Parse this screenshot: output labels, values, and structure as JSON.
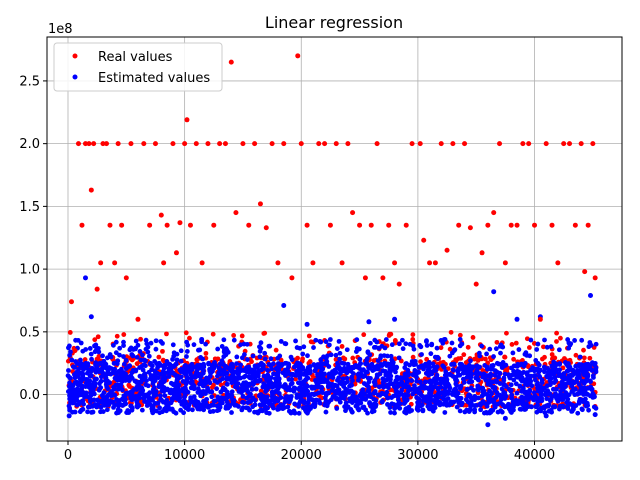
{
  "chart_data": {
    "type": "scatter",
    "title": "Linear regression",
    "xlabel": "",
    "ylabel": "",
    "y_offset_label": "1e8",
    "xlim": [
      -1800,
      47500
    ],
    "ylim": [
      -0.37,
      2.85
    ],
    "x_ticks": [
      0,
      10000,
      20000,
      30000,
      40000
    ],
    "x_tick_labels": [
      "0",
      "10000",
      "20000",
      "30000",
      "40000"
    ],
    "y_ticks": [
      0.0,
      0.5,
      1.0,
      1.5,
      2.0,
      2.5
    ],
    "y_tick_labels": [
      "0.0",
      "0.5",
      "1.0",
      "1.5",
      "2.0",
      "2.5"
    ],
    "grid": true,
    "legend_position": "top-left",
    "series": [
      {
        "name": "Real values",
        "color": "#ff0000",
        "marker": "dot",
        "points": [
          [
            300,
            0.74
          ],
          [
            600,
            0.35
          ],
          [
            900,
            2.0
          ],
          [
            1200,
            1.35
          ],
          [
            1500,
            2.0
          ],
          [
            1800,
            2.0
          ],
          [
            2000,
            1.63
          ],
          [
            2200,
            2.0
          ],
          [
            2500,
            0.84
          ],
          [
            2800,
            1.05
          ],
          [
            3000,
            2.0
          ],
          [
            3300,
            2.0
          ],
          [
            3600,
            1.35
          ],
          [
            4000,
            1.05
          ],
          [
            4300,
            2.0
          ],
          [
            4600,
            1.35
          ],
          [
            5000,
            0.93
          ],
          [
            5400,
            2.0
          ],
          [
            6000,
            0.6
          ],
          [
            6500,
            2.0
          ],
          [
            7000,
            1.35
          ],
          [
            7500,
            2.0
          ],
          [
            8000,
            1.43
          ],
          [
            8200,
            1.05
          ],
          [
            8500,
            1.35
          ],
          [
            9000,
            2.0
          ],
          [
            9300,
            1.13
          ],
          [
            9600,
            1.37
          ],
          [
            10000,
            2.0
          ],
          [
            10200,
            2.19
          ],
          [
            10500,
            1.35
          ],
          [
            11000,
            2.0
          ],
          [
            11500,
            1.05
          ],
          [
            12000,
            2.0
          ],
          [
            12500,
            1.35
          ],
          [
            13000,
            2.0
          ],
          [
            13500,
            2.0
          ],
          [
            14000,
            2.65
          ],
          [
            14400,
            1.45
          ],
          [
            15000,
            2.0
          ],
          [
            15500,
            1.35
          ],
          [
            16000,
            2.0
          ],
          [
            16500,
            1.52
          ],
          [
            17000,
            1.33
          ],
          [
            17500,
            2.0
          ],
          [
            18000,
            1.05
          ],
          [
            18500,
            2.0
          ],
          [
            19200,
            0.93
          ],
          [
            19700,
            2.7
          ],
          [
            20000,
            2.0
          ],
          [
            20500,
            1.35
          ],
          [
            21000,
            1.05
          ],
          [
            21500,
            2.0
          ],
          [
            22000,
            2.0
          ],
          [
            22500,
            1.35
          ],
          [
            23000,
            2.0
          ],
          [
            23500,
            1.05
          ],
          [
            24000,
            2.0
          ],
          [
            24400,
            1.45
          ],
          [
            25000,
            1.35
          ],
          [
            25500,
            0.93
          ],
          [
            26000,
            1.35
          ],
          [
            26500,
            2.0
          ],
          [
            27000,
            0.93
          ],
          [
            27500,
            1.35
          ],
          [
            28000,
            1.05
          ],
          [
            28400,
            0.88
          ],
          [
            29000,
            1.35
          ],
          [
            29500,
            2.0
          ],
          [
            30200,
            2.0
          ],
          [
            30500,
            1.23
          ],
          [
            31000,
            1.05
          ],
          [
            31500,
            1.05
          ],
          [
            32000,
            2.0
          ],
          [
            32500,
            1.15
          ],
          [
            33000,
            2.0
          ],
          [
            33500,
            1.35
          ],
          [
            34000,
            2.0
          ],
          [
            34500,
            1.33
          ],
          [
            35000,
            0.88
          ],
          [
            35500,
            1.13
          ],
          [
            36000,
            1.35
          ],
          [
            36500,
            1.45
          ],
          [
            37000,
            2.0
          ],
          [
            37500,
            1.05
          ],
          [
            38000,
            1.35
          ],
          [
            38500,
            1.35
          ],
          [
            39000,
            2.0
          ],
          [
            39500,
            2.0
          ],
          [
            40000,
            1.35
          ],
          [
            40500,
            0.6
          ],
          [
            41000,
            2.0
          ],
          [
            41500,
            1.35
          ],
          [
            42000,
            1.05
          ],
          [
            42500,
            2.0
          ],
          [
            43000,
            2.0
          ],
          [
            43500,
            1.35
          ],
          [
            44000,
            2.0
          ],
          [
            44300,
            0.98
          ],
          [
            44600,
            1.35
          ],
          [
            45000,
            2.0
          ],
          [
            45200,
            0.93
          ]
        ]
      },
      {
        "name": "Estimated values",
        "color": "#0000ff",
        "marker": "dot",
        "points": [
          [
            1500,
            0.93
          ],
          [
            2000,
            0.62
          ],
          [
            18500,
            0.71
          ],
          [
            20500,
            0.56
          ],
          [
            25800,
            0.58
          ],
          [
            28000,
            0.6
          ],
          [
            36500,
            0.82
          ],
          [
            38500,
            0.6
          ],
          [
            40500,
            0.62
          ],
          [
            44800,
            0.79
          ],
          [
            36000,
            -0.24
          ],
          [
            37500,
            -0.19
          ],
          [
            41000,
            -0.17
          ],
          [
            45200,
            -0.16
          ],
          [
            100,
            -0.17
          ]
        ]
      }
    ]
  }
}
